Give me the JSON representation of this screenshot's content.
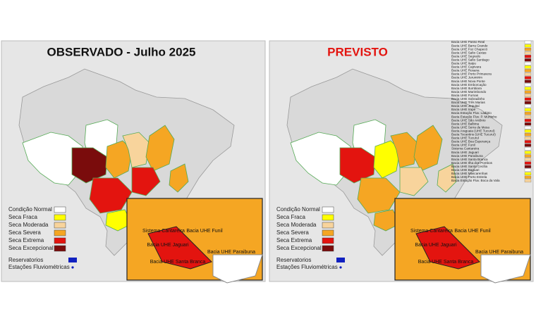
{
  "panels": [
    {
      "title": "OBSERVADO - Julho 2025"
    },
    {
      "title": "PREVISTO"
    }
  ],
  "legend": [
    "Condição Normal",
    "Seca Fraca",
    "Seca Moderada",
    "Seca Severa",
    "Seca Extrema",
    "Seca Excepcional"
  ],
  "markers": [
    "Reservatorios",
    "Estações Fluviométricas"
  ],
  "inset_labels": [
    "Sistema Cantareira",
    "Bacia UHE Jaguari",
    "Bacia UHE Funil",
    "Bacia UHE Paraibuna",
    "Bacia UHE Santa Branca"
  ],
  "basins": [
    "Bacia UHE Passo Real",
    "Bacia UHE Barra Grande",
    "Bacia UHE Foz Chapecó",
    "Bacia UHE Salto Caxias",
    "Bacia UHE Segredo",
    "Bacia UHE Salto Santiago",
    "Bacia UHE Itaipu",
    "Bacia UHE Capivara",
    "Bacia UHE Rosana",
    "Bacia UHE Porto Primavera",
    "Bacia UHE Jurumirim",
    "Bacia UHE Nova Ponte",
    "Bacia UHE Emborcação",
    "Bacia UHE Itumbiara",
    "Bacia UHE Marimbondo",
    "Bacia UHE Furnas",
    "Bacia UHE Sobradinho",
    "Bacia UHE Três Marias",
    "Bacia UHE Jequitaí",
    "Bacia UHE Irapé",
    "Bacia Estação Fluv. Ladário",
    "Bacia Estação Fluv. P. Murtinho",
    "Bacia UHE São Antônio",
    "Bacia UHE Balbina",
    "Bacia UHE Serra da Mesa",
    "Bacia Araguaia (UHE Tucuruí)",
    "Bacia Tocantins (UHE Tucuruí)",
    "Bacia UHE Tucuruí",
    "Bacia UHE Boa Esperança",
    "Bacia UHE Funil",
    "Sistema Cantareira",
    "Bacia UHE Jaguari",
    "Bacia UHE Paraibuna",
    "Bacia UHE Santa Branca",
    "Bacia UHE Ilha dos Pombos",
    "Bacia UHE Santa Cecília",
    "Bacia UHE Baguari",
    "Bacia UHE Mascarenhas",
    "Bacia UHE Porto Estrela",
    "Bacia Estação Fluv. Boca da Vala"
  ]
}
